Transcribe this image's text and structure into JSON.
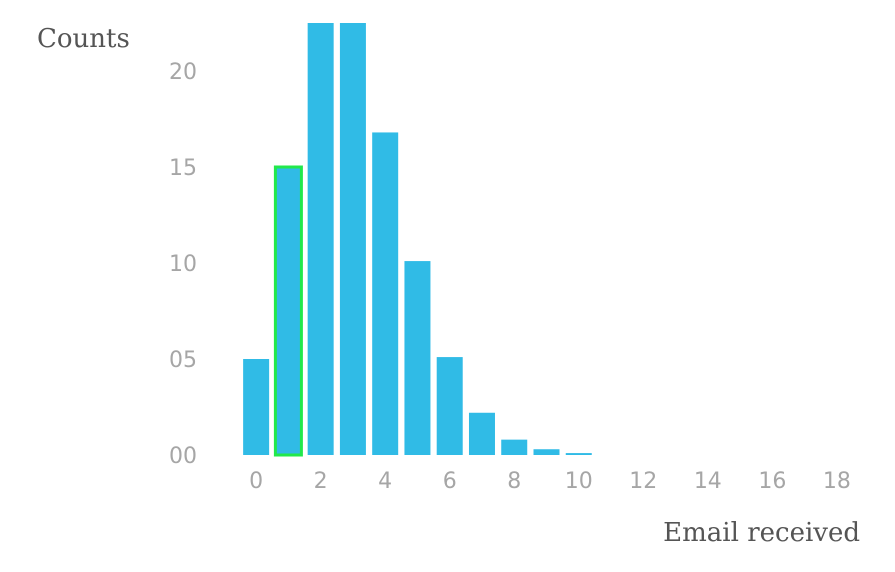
{
  "chart_data": {
    "type": "bar",
    "title": "",
    "xlabel": "Email received",
    "ylabel": "Counts",
    "ylim": [
      0,
      22.5
    ],
    "xlim": [
      -0.5,
      18.5
    ],
    "grid": false,
    "x": [
      0,
      1,
      2,
      3,
      4,
      5,
      6,
      7,
      8,
      9,
      10
    ],
    "values": [
      5.0,
      15.0,
      22.5,
      22.5,
      16.8,
      10.1,
      5.1,
      2.2,
      0.8,
      0.3,
      0.1
    ],
    "highlighted_x": 1,
    "x_ticks": [
      0,
      2,
      4,
      6,
      8,
      10,
      12,
      14,
      16,
      18
    ],
    "x_tick_labels": [
      "0",
      "2",
      "4",
      "6",
      "8",
      "10",
      "12",
      "14",
      "16",
      "18"
    ],
    "y_ticks": [
      0,
      5,
      10,
      15,
      20
    ],
    "y_tick_labels": [
      "00",
      "05",
      "10",
      "15",
      "20"
    ],
    "colors": {
      "bar": "#30bbe6",
      "highlight_outline": "#22e84b",
      "tick_label": "#a6a6a6",
      "axis_title": "#555555"
    }
  }
}
